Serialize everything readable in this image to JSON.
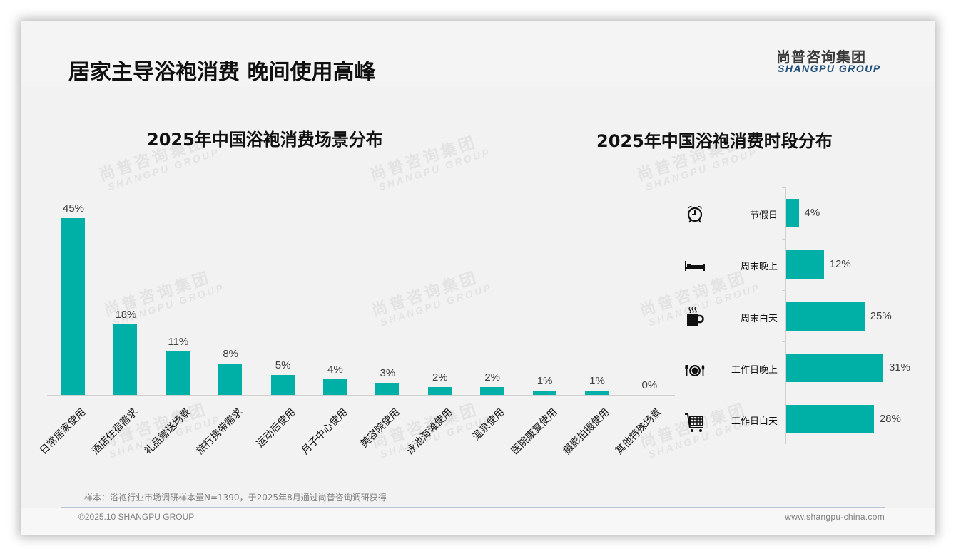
{
  "header": {
    "title": "居家主导浴袍消费 晚间使用高峰",
    "logo_cn": "尚普咨询集团",
    "logo_en": "SHANGPU GROUP"
  },
  "watermark": {
    "cn": "尚普咨询集团",
    "en": "SHANGPU GROUP"
  },
  "colors": {
    "bar": "#00b0a6",
    "title": "#111111",
    "logo_en": "#1f4e79",
    "muted": "#7f7f7f"
  },
  "chart_data": [
    {
      "type": "bar",
      "title": "2025年中国浴袍消费场景分布",
      "xlabel": "",
      "ylabel": "",
      "grid": false,
      "legend": "none",
      "ylim": [
        0,
        50
      ],
      "categories": [
        "日常居家使用",
        "酒店住宿需求",
        "礼品赠送场景",
        "旅行携带需求",
        "运动后使用",
        "月子中心使用",
        "美容院使用",
        "泳池海滩使用",
        "温泉使用",
        "医院康复使用",
        "摄影拍摄使用",
        "其他特殊场景"
      ],
      "values": [
        45,
        18,
        11,
        8,
        5,
        4,
        3,
        2,
        2,
        1,
        1,
        0
      ],
      "value_labels": [
        "45%",
        "18%",
        "11%",
        "8%",
        "5%",
        "4%",
        "3%",
        "2%",
        "2%",
        "1%",
        "1%",
        "0%"
      ]
    },
    {
      "type": "bar",
      "orientation": "horizontal",
      "title": "2025年中国浴袍消费时段分布",
      "xlabel": "",
      "ylabel": "",
      "grid": false,
      "legend": "none",
      "xlim": [
        0,
        35
      ],
      "categories": [
        "节假日",
        "周末晚上",
        "周末白天",
        "工作日晚上",
        "工作日白天"
      ],
      "values": [
        4,
        12,
        25,
        31,
        28
      ],
      "value_labels": [
        "4%",
        "12%",
        "25%",
        "31%",
        "28%"
      ],
      "icons": [
        "alarm-clock-icon",
        "bed-icon",
        "hot-coffee-mug-icon",
        "plate-cutlery-icon",
        "shopping-cart-icon"
      ]
    }
  ],
  "footer": {
    "note": "样本：浴袍行业市场调研样本量N=1390，于2025年8月通过尚普咨询调研获得",
    "copyright": "©2025.10 SHANGPU GROUP",
    "website": "www.shangpu-china.com"
  }
}
